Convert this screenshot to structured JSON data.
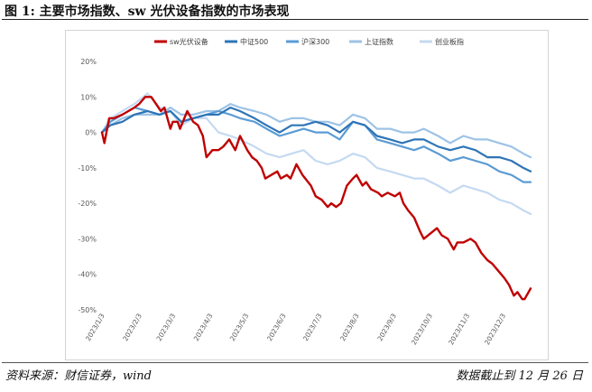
{
  "header": {
    "title": "图 1:  主要市场指数、sw 光伏设备指数的市场表现"
  },
  "footer": {
    "source": "资料来源：财信证券，wind",
    "date_note": "数据截止到 12 月 26 日"
  },
  "chart_data": {
    "type": "line",
    "title": "",
    "xlabel": "",
    "ylabel": "",
    "ylim": [
      -0.5,
      0.2
    ],
    "y_ticks": [
      0.2,
      0.1,
      0.0,
      -0.1,
      -0.2,
      -0.3,
      -0.4,
      -0.5
    ],
    "y_tick_labels": [
      "20%",
      "10%",
      "0%",
      "-10%",
      "-20%",
      "-30%",
      "-40%",
      "-50%"
    ],
    "x_ticks": [
      "2023/1/3",
      "2023/2/3",
      "2023/3/3",
      "2023/4/3",
      "2023/5/3",
      "2023/6/3",
      "2023/7/3",
      "2023/8/3",
      "2023/9/3",
      "2023/10/3",
      "2023/11/3",
      "2023/12/3"
    ],
    "grid": false,
    "legend_position": "top",
    "series": [
      {
        "name": "sw光伏设备",
        "color": "#c00000",
        "points": [
          [
            "2023-01-03",
            0.0
          ],
          [
            "2023-01-05",
            -0.03
          ],
          [
            "2023-01-09",
            0.04
          ],
          [
            "2023-01-13",
            0.04
          ],
          [
            "2023-01-20",
            0.05
          ],
          [
            "2023-01-30",
            0.07
          ],
          [
            "2023-02-03",
            0.08
          ],
          [
            "2023-02-08",
            0.1
          ],
          [
            "2023-02-13",
            0.1
          ],
          [
            "2023-02-17",
            0.08
          ],
          [
            "2023-02-21",
            0.06
          ],
          [
            "2023-02-24",
            0.07
          ],
          [
            "2023-03-01",
            0.01
          ],
          [
            "2023-03-03",
            0.03
          ],
          [
            "2023-03-07",
            0.03
          ],
          [
            "2023-03-09",
            0.01
          ],
          [
            "2023-03-15",
            0.06
          ],
          [
            "2023-03-20",
            0.03
          ],
          [
            "2023-03-24",
            0.02
          ],
          [
            "2023-03-28",
            -0.01
          ],
          [
            "2023-03-31",
            -0.07
          ],
          [
            "2023-04-05",
            -0.05
          ],
          [
            "2023-04-10",
            -0.05
          ],
          [
            "2023-04-14",
            -0.04
          ],
          [
            "2023-04-19",
            -0.02
          ],
          [
            "2023-04-24",
            -0.05
          ],
          [
            "2023-04-28",
            -0.01
          ],
          [
            "2023-05-04",
            -0.05
          ],
          [
            "2023-05-08",
            -0.07
          ],
          [
            "2023-05-12",
            -0.08
          ],
          [
            "2023-05-16",
            -0.1
          ],
          [
            "2023-05-19",
            -0.13
          ],
          [
            "2023-05-24",
            -0.12
          ],
          [
            "2023-05-29",
            -0.11
          ],
          [
            "2023-06-01",
            -0.13
          ],
          [
            "2023-06-06",
            -0.12
          ],
          [
            "2023-06-09",
            -0.13
          ],
          [
            "2023-06-14",
            -0.09
          ],
          [
            "2023-06-19",
            -0.12
          ],
          [
            "2023-06-26",
            -0.15
          ],
          [
            "2023-06-30",
            -0.18
          ],
          [
            "2023-07-05",
            -0.19
          ],
          [
            "2023-07-10",
            -0.21
          ],
          [
            "2023-07-13",
            -0.2
          ],
          [
            "2023-07-17",
            -0.21
          ],
          [
            "2023-07-21",
            -0.2
          ],
          [
            "2023-07-26",
            -0.15
          ],
          [
            "2023-07-31",
            -0.13
          ],
          [
            "2023-08-03",
            -0.12
          ],
          [
            "2023-08-08",
            -0.15
          ],
          [
            "2023-08-11",
            -0.14
          ],
          [
            "2023-08-15",
            -0.16
          ],
          [
            "2023-08-21",
            -0.17
          ],
          [
            "2023-08-24",
            -0.18
          ],
          [
            "2023-08-29",
            -0.17
          ],
          [
            "2023-09-04",
            -0.18
          ],
          [
            "2023-09-08",
            -0.17
          ],
          [
            "2023-09-11",
            -0.2
          ],
          [
            "2023-09-15",
            -0.22
          ],
          [
            "2023-09-20",
            -0.24
          ],
          [
            "2023-09-25",
            -0.28
          ],
          [
            "2023-09-28",
            -0.3
          ],
          [
            "2023-10-09",
            -0.27
          ],
          [
            "2023-10-13",
            -0.29
          ],
          [
            "2023-10-18",
            -0.3
          ],
          [
            "2023-10-23",
            -0.33
          ],
          [
            "2023-10-26",
            -0.31
          ],
          [
            "2023-10-31",
            -0.31
          ],
          [
            "2023-11-06",
            -0.3
          ],
          [
            "2023-11-10",
            -0.31
          ],
          [
            "2023-11-15",
            -0.34
          ],
          [
            "2023-11-20",
            -0.36
          ],
          [
            "2023-11-24",
            -0.37
          ],
          [
            "2023-11-29",
            -0.39
          ],
          [
            "2023-12-04",
            -0.41
          ],
          [
            "2023-12-08",
            -0.43
          ],
          [
            "2023-12-12",
            -0.46
          ],
          [
            "2023-12-15",
            -0.45
          ],
          [
            "2023-12-19",
            -0.47
          ],
          [
            "2023-12-21",
            -0.47
          ],
          [
            "2023-12-26",
            -0.44
          ]
        ]
      },
      {
        "name": "中证500",
        "color": "#2e75b6",
        "points": [
          [
            "2023-01-03",
            0.0
          ],
          [
            "2023-01-10",
            0.02
          ],
          [
            "2023-01-20",
            0.03
          ],
          [
            "2023-01-30",
            0.05
          ],
          [
            "2023-02-10",
            0.06
          ],
          [
            "2023-02-20",
            0.05
          ],
          [
            "2023-03-01",
            0.06
          ],
          [
            "2023-03-10",
            0.03
          ],
          [
            "2023-03-20",
            0.04
          ],
          [
            "2023-03-31",
            0.05
          ],
          [
            "2023-04-10",
            0.05
          ],
          [
            "2023-04-20",
            0.07
          ],
          [
            "2023-04-28",
            0.06
          ],
          [
            "2023-05-10",
            0.04
          ],
          [
            "2023-05-20",
            0.02
          ],
          [
            "2023-05-31",
            0.0
          ],
          [
            "2023-06-10",
            0.02
          ],
          [
            "2023-06-20",
            0.02
          ],
          [
            "2023-06-30",
            0.03
          ],
          [
            "2023-07-10",
            0.02
          ],
          [
            "2023-07-20",
            0.0
          ],
          [
            "2023-07-31",
            0.03
          ],
          [
            "2023-08-10",
            0.02
          ],
          [
            "2023-08-20",
            -0.01
          ],
          [
            "2023-08-31",
            -0.02
          ],
          [
            "2023-09-10",
            -0.03
          ],
          [
            "2023-09-20",
            -0.02
          ],
          [
            "2023-09-28",
            -0.02
          ],
          [
            "2023-10-10",
            -0.04
          ],
          [
            "2023-10-20",
            -0.05
          ],
          [
            "2023-10-31",
            -0.04
          ],
          [
            "2023-11-10",
            -0.05
          ],
          [
            "2023-11-20",
            -0.07
          ],
          [
            "2023-11-30",
            -0.07
          ],
          [
            "2023-12-10",
            -0.08
          ],
          [
            "2023-12-20",
            -0.1
          ],
          [
            "2023-12-26",
            -0.11
          ]
        ]
      },
      {
        "name": "沪深300",
        "color": "#5b9bd5",
        "points": [
          [
            "2023-01-03",
            0.0
          ],
          [
            "2023-01-10",
            0.03
          ],
          [
            "2023-01-20",
            0.05
          ],
          [
            "2023-01-30",
            0.07
          ],
          [
            "2023-02-10",
            0.06
          ],
          [
            "2023-02-20",
            0.05
          ],
          [
            "2023-03-01",
            0.06
          ],
          [
            "2023-03-10",
            0.03
          ],
          [
            "2023-03-20",
            0.04
          ],
          [
            "2023-03-31",
            0.05
          ],
          [
            "2023-04-10",
            0.06
          ],
          [
            "2023-04-20",
            0.05
          ],
          [
            "2023-04-28",
            0.04
          ],
          [
            "2023-05-10",
            0.03
          ],
          [
            "2023-05-20",
            0.01
          ],
          [
            "2023-05-31",
            -0.01
          ],
          [
            "2023-06-10",
            0.0
          ],
          [
            "2023-06-20",
            0.01
          ],
          [
            "2023-06-30",
            0.0
          ],
          [
            "2023-07-10",
            0.0
          ],
          [
            "2023-07-20",
            -0.02
          ],
          [
            "2023-07-31",
            0.03
          ],
          [
            "2023-08-10",
            0.02
          ],
          [
            "2023-08-20",
            -0.02
          ],
          [
            "2023-08-31",
            -0.03
          ],
          [
            "2023-09-10",
            -0.04
          ],
          [
            "2023-09-20",
            -0.05
          ],
          [
            "2023-09-28",
            -0.04
          ],
          [
            "2023-10-10",
            -0.06
          ],
          [
            "2023-10-20",
            -0.08
          ],
          [
            "2023-10-31",
            -0.07
          ],
          [
            "2023-11-10",
            -0.08
          ],
          [
            "2023-11-20",
            -0.09
          ],
          [
            "2023-11-30",
            -0.11
          ],
          [
            "2023-12-10",
            -0.12
          ],
          [
            "2023-12-20",
            -0.14
          ],
          [
            "2023-12-26",
            -0.14
          ]
        ]
      },
      {
        "name": "上证指数",
        "color": "#9dc3e6",
        "points": [
          [
            "2023-01-03",
            0.0
          ],
          [
            "2023-01-10",
            0.02
          ],
          [
            "2023-01-20",
            0.04
          ],
          [
            "2023-01-30",
            0.05
          ],
          [
            "2023-02-10",
            0.05
          ],
          [
            "2023-02-20",
            0.05
          ],
          [
            "2023-03-01",
            0.07
          ],
          [
            "2023-03-10",
            0.05
          ],
          [
            "2023-03-20",
            0.05
          ],
          [
            "2023-03-31",
            0.06
          ],
          [
            "2023-04-10",
            0.06
          ],
          [
            "2023-04-20",
            0.08
          ],
          [
            "2023-04-28",
            0.07
          ],
          [
            "2023-05-10",
            0.06
          ],
          [
            "2023-05-20",
            0.05
          ],
          [
            "2023-05-31",
            0.03
          ],
          [
            "2023-06-10",
            0.04
          ],
          [
            "2023-06-20",
            0.04
          ],
          [
            "2023-06-30",
            0.03
          ],
          [
            "2023-07-10",
            0.03
          ],
          [
            "2023-07-20",
            0.02
          ],
          [
            "2023-07-31",
            0.05
          ],
          [
            "2023-08-10",
            0.04
          ],
          [
            "2023-08-20",
            0.01
          ],
          [
            "2023-08-31",
            0.01
          ],
          [
            "2023-09-10",
            0.0
          ],
          [
            "2023-09-20",
            0.0
          ],
          [
            "2023-09-28",
            0.01
          ],
          [
            "2023-10-10",
            -0.01
          ],
          [
            "2023-10-20",
            -0.03
          ],
          [
            "2023-10-31",
            -0.01
          ],
          [
            "2023-11-10",
            -0.02
          ],
          [
            "2023-11-20",
            -0.02
          ],
          [
            "2023-11-30",
            -0.03
          ],
          [
            "2023-12-10",
            -0.04
          ],
          [
            "2023-12-20",
            -0.06
          ],
          [
            "2023-12-26",
            -0.07
          ]
        ]
      },
      {
        "name": "创业板指",
        "color": "#c5d9f1",
        "points": [
          [
            "2023-01-03",
            0.0
          ],
          [
            "2023-01-10",
            0.04
          ],
          [
            "2023-01-20",
            0.06
          ],
          [
            "2023-01-30",
            0.08
          ],
          [
            "2023-02-10",
            0.11
          ],
          [
            "2023-02-20",
            0.07
          ],
          [
            "2023-03-01",
            0.06
          ],
          [
            "2023-03-10",
            0.02
          ],
          [
            "2023-03-20",
            0.04
          ],
          [
            "2023-03-31",
            0.04
          ],
          [
            "2023-04-10",
            0.0
          ],
          [
            "2023-04-20",
            -0.01
          ],
          [
            "2023-04-28",
            -0.02
          ],
          [
            "2023-05-10",
            -0.04
          ],
          [
            "2023-05-20",
            -0.06
          ],
          [
            "2023-05-31",
            -0.07
          ],
          [
            "2023-06-10",
            -0.06
          ],
          [
            "2023-06-20",
            -0.05
          ],
          [
            "2023-06-30",
            -0.08
          ],
          [
            "2023-07-10",
            -0.09
          ],
          [
            "2023-07-20",
            -0.08
          ],
          [
            "2023-07-31",
            -0.06
          ],
          [
            "2023-08-10",
            -0.07
          ],
          [
            "2023-08-20",
            -0.1
          ],
          [
            "2023-08-31",
            -0.11
          ],
          [
            "2023-09-10",
            -0.12
          ],
          [
            "2023-09-20",
            -0.13
          ],
          [
            "2023-09-28",
            -0.13
          ],
          [
            "2023-10-10",
            -0.15
          ],
          [
            "2023-10-20",
            -0.17
          ],
          [
            "2023-10-31",
            -0.15
          ],
          [
            "2023-11-10",
            -0.16
          ],
          [
            "2023-11-20",
            -0.17
          ],
          [
            "2023-11-30",
            -0.19
          ],
          [
            "2023-12-10",
            -0.2
          ],
          [
            "2023-12-20",
            -0.22
          ],
          [
            "2023-12-26",
            -0.23
          ]
        ]
      }
    ]
  }
}
